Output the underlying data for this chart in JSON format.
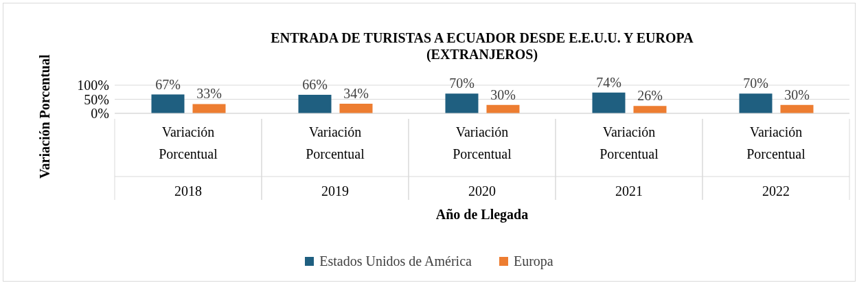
{
  "chart_data": {
    "type": "bar",
    "title": "ENTRADA DE TURISTAS A ECUADOR DESDE E.E.U.U. Y EUROPA\n(EXTRANJEROS)",
    "annotations": [
      "Año de Llegada"
    ],
    "ylabel": "Variación Porcentual",
    "categories": [
      "Variación Porcentual\n2018",
      "Variación Porcentual\n2019",
      "Variación Porcentual\n2020",
      "Variación Porcentual\n2021",
      "Variación Porcentual\n2022"
    ],
    "series": [
      {
        "name": "Estados Unidos de América",
        "color": "#1f5f80",
        "values": [
          67,
          66,
          70,
          74,
          70
        ],
        "value_labels": [
          "67%",
          "66%",
          "70%",
          "74%",
          "70%"
        ]
      },
      {
        "name": "Europa",
        "color": "#ed7d31",
        "values": [
          33,
          34,
          30,
          26,
          30
        ],
        "value_labels": [
          "33%",
          "34%",
          "30%",
          "26%",
          "30%"
        ]
      }
    ],
    "ylim": [
      0,
      100
    ],
    "yticks": [
      {
        "value": 0,
        "label": "0%"
      },
      {
        "value": 50,
        "label": "50%"
      },
      {
        "value": 100,
        "label": "100%"
      }
    ],
    "grid": "y",
    "legend": "bottom"
  }
}
